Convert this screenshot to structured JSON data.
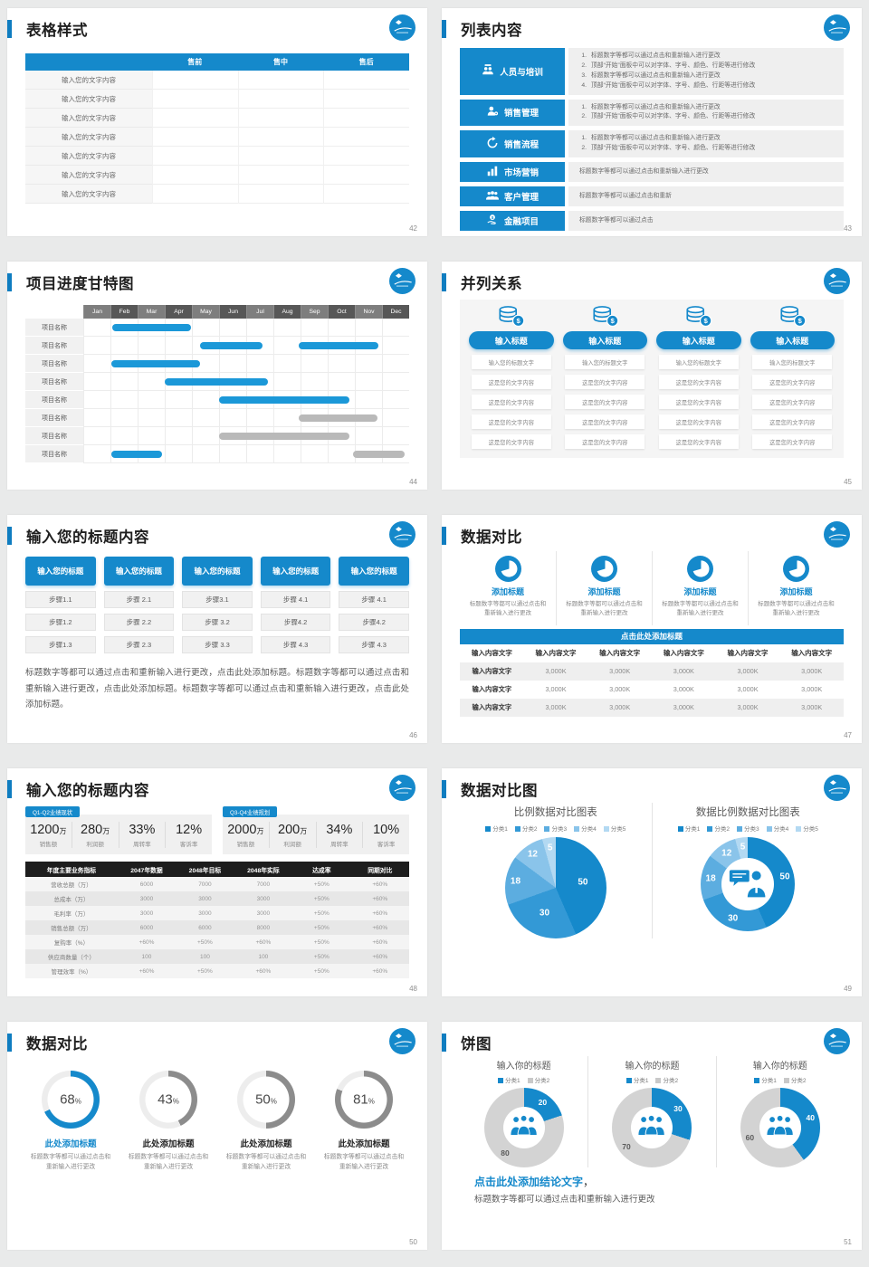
{
  "theme": {
    "primary": "#1589cb",
    "primary_dark": "#0f7dc0",
    "gantt_blue": "#1b98d8",
    "gantt_gray": "#b9b9b9",
    "pie_shades": [
      "#1589cb",
      "#3399d6",
      "#5cade0",
      "#8ac4ea",
      "#b3d9f2"
    ],
    "donut_gray": "#d3d3d3",
    "ring_gray": "#8c8c8c",
    "ring_track": "#ededed"
  },
  "slides": {
    "s42": {
      "title": "表格样式",
      "page": "42",
      "table": {
        "corner": "",
        "headers": [
          "售前",
          "售中",
          "售后"
        ],
        "row_label": "输入您的文字内容",
        "row_count": 7
      }
    },
    "s43": {
      "title": "列表内容",
      "page": "43",
      "items": [
        {
          "label": "人员与培训",
          "icon": "team-training-icon",
          "numbered": true,
          "lines": [
            "标题数字等都可以通过点击和重新输入进行更改",
            "顶部“开始”面板中可以对字体、字号、颜色、行距等进行修改",
            "标题数字等都可以通过点击和重新输入进行更改",
            "顶部“开始”面板中可以对字体、字号、颜色、行距等进行修改"
          ]
        },
        {
          "label": "销售管理",
          "icon": "sales-manager-icon",
          "numbered": true,
          "lines": [
            "标题数字等都可以通过点击和重新输入进行更改",
            "顶部“开始”面板中可以对字体、字号、颜色、行距等进行修改"
          ]
        },
        {
          "label": "销售流程",
          "icon": "process-icon",
          "numbered": true,
          "lines": [
            "标题数字等都可以通过点击和重新输入进行更改",
            "顶部“开始”面板中可以对字体、字号、颜色、行距等进行修改"
          ]
        },
        {
          "label": "市场营销",
          "icon": "bar-chart-icon",
          "numbered": false,
          "lines": [
            "标题数字等都可以通过点击和重新输入进行更改"
          ]
        },
        {
          "label": "客户管理",
          "icon": "customers-icon",
          "numbered": false,
          "lines": [
            "标题数字等都可以通过点击和重新"
          ]
        },
        {
          "label": "金融项目",
          "icon": "finance-icon",
          "numbered": false,
          "lines": [
            "标题数字等都可以通过点击"
          ]
        }
      ]
    },
    "s44": {
      "title": "项目进度甘特图",
      "page": "44",
      "months": [
        "Jan",
        "Feb",
        "Mar",
        "Apr",
        "May",
        "Jun",
        "Jul",
        "Aug",
        "Sep",
        "Oct",
        "Nov",
        "Dec"
      ],
      "row_label": "项目名称",
      "rows": [
        [
          {
            "s": 1.05,
            "e": 3.95,
            "c": "blue"
          }
        ],
        [
          {
            "s": 4.3,
            "e": 6.6,
            "c": "blue"
          },
          {
            "s": 7.93,
            "e": 10.86,
            "c": "blue"
          }
        ],
        [
          {
            "s": 1.03,
            "e": 4.3,
            "c": "blue"
          }
        ],
        [
          {
            "s": 3.0,
            "e": 6.8,
            "c": "blue"
          }
        ],
        [
          {
            "s": 5.0,
            "e": 9.8,
            "c": "blue"
          }
        ],
        [
          {
            "s": 7.93,
            "e": 10.83,
            "c": "gray"
          }
        ],
        [
          {
            "s": 5.0,
            "e": 9.8,
            "c": "gray"
          }
        ],
        [
          {
            "s": 1.03,
            "e": 2.9,
            "c": "blue"
          },
          {
            "s": 9.93,
            "e": 11.83,
            "c": "gray"
          }
        ]
      ]
    },
    "s45": {
      "title": "并列关系",
      "page": "45",
      "columns": [
        {
          "header": "输入标题",
          "rows": [
            "输入您的标题文字",
            "这是您的文字内容",
            "这是您的文字内容",
            "这是您的文字内容",
            "这是您的文字内容"
          ]
        },
        {
          "header": "输入标题",
          "rows": [
            "输入您的标题文字",
            "这是您的文字内容",
            "这是您的文字内容",
            "这是您的文字内容",
            "这是您的文字内容"
          ]
        },
        {
          "header": "输入标题",
          "rows": [
            "输入您的标题文字",
            "这是您的文字内容",
            "这是您的文字内容",
            "这是您的文字内容",
            "这是您的文字内容"
          ]
        },
        {
          "header": "输入标题",
          "rows": [
            "输入您的标题文字",
            "这是您的文字内容",
            "这是您的文字内容",
            "这是您的文字内容",
            "这是您的文字内容"
          ]
        }
      ]
    },
    "s46": {
      "title": "输入您的标题内容",
      "page": "46",
      "columns": [
        {
          "header": "输入您的标题",
          "steps": [
            "步骤1.1",
            "步骤1.2",
            "步骤1.3"
          ]
        },
        {
          "header": "输入您的标题",
          "steps": [
            "步骤 2.1",
            "步骤 2.2",
            "步骤 2.3"
          ]
        },
        {
          "header": "输入您的标题",
          "steps": [
            "步骤3.1",
            "步骤 3.2",
            "步骤 3.3"
          ]
        },
        {
          "header": "输入您的标题",
          "steps": [
            "步骤 4.1",
            "步骤4.2",
            "步骤 4.3"
          ]
        },
        {
          "header": "输入您的标题",
          "steps": [
            "步骤 4.1",
            "步骤4.2",
            "步骤 4.3"
          ]
        }
      ],
      "paragraph": "标题数字等都可以通过点击和重新输入进行更改，点击此处添加标题。标题数字等都可以通过点击和重新输入进行更改，点击此处添加标题。标题数字等都可以通过点击和重新输入进行更改，点击此处添加标题。"
    },
    "s47": {
      "title": "数据对比",
      "page": "47",
      "features": [
        {
          "title": "添加标题",
          "desc": "标题数字等都可以通过点击和重新输入进行更改"
        },
        {
          "title": "添加标题",
          "desc": "标题数字等都可以通过点击和重新输入进行更改"
        },
        {
          "title": "添加标题",
          "desc": "标题数字等都可以通过点击和重新输入进行更改"
        },
        {
          "title": "添加标题",
          "desc": "标题数字等都可以通过点击和重新输入进行更改"
        }
      ],
      "banner": "点击此处添加标题",
      "table": {
        "headers": [
          "输入内容文字",
          "输入内容文字",
          "输入内容文字",
          "输入内容文字",
          "输入内容文字",
          "输入内容文字"
        ],
        "rows": [
          [
            "输入内容文字",
            "3,000K",
            "3,000K",
            "3,000K",
            "3,000K",
            "3,000K"
          ],
          [
            "输入内容文字",
            "3,000K",
            "3,000K",
            "3,000K",
            "3,000K",
            "3,000K"
          ],
          [
            "输入内容文字",
            "3,000K",
            "3,000K",
            "3,000K",
            "3,000K",
            "3,000K"
          ]
        ]
      }
    },
    "s48": {
      "title": "输入您的标题内容",
      "page": "48",
      "groups": [
        {
          "tag": "Q1-Q2业绩现状",
          "stats": [
            {
              "value": "1200",
              "unit": "万",
              "label": "销售额"
            },
            {
              "value": "280",
              "unit": "万",
              "label": "利润额"
            },
            {
              "value": "33%",
              "unit": "",
              "label": "周转率"
            },
            {
              "value": "12%",
              "unit": "",
              "label": "客诉率"
            }
          ]
        },
        {
          "tag": "Q3-Q4业绩规划",
          "stats": [
            {
              "value": "2000",
              "unit": "万",
              "label": "销售额"
            },
            {
              "value": "200",
              "unit": "万",
              "label": "利润额"
            },
            {
              "value": "34%",
              "unit": "",
              "label": "周转率"
            },
            {
              "value": "10%",
              "unit": "",
              "label": "客诉率"
            }
          ]
        }
      ],
      "table": {
        "headers": [
          "年度主要业务指标",
          "2047年数据",
          "2048年目标",
          "2048年实际",
          "达成率",
          "同期对比"
        ],
        "rows": [
          [
            "营收总额（万）",
            "6000",
            "7000",
            "7000",
            "+50%",
            "+60%"
          ],
          [
            "总成本（万）",
            "3000",
            "3000",
            "3000",
            "+50%",
            "+60%"
          ],
          [
            "毛利率（万）",
            "3000",
            "3000",
            "3000",
            "+50%",
            "+60%"
          ],
          [
            "销售总额（万）",
            "6000",
            "6000",
            "8000",
            "+50%",
            "+60%"
          ],
          [
            "复购率（%）",
            "+60%",
            "+50%",
            "+60%",
            "+50%",
            "+60%"
          ],
          [
            "供应商数量（个）",
            "100",
            "100",
            "100",
            "+50%",
            "+60%"
          ],
          [
            "管理效率（%）",
            "+60%",
            "+50%",
            "+60%",
            "+50%",
            "+60%"
          ]
        ]
      }
    },
    "s49": {
      "title": "数据对比图",
      "page": "49",
      "legend": [
        "分类1",
        "分类2",
        "分类3",
        "分类4",
        "分类5"
      ],
      "charts": [
        {
          "title": "比例数据对比图表",
          "type": "pie",
          "values": [
            50,
            30,
            18,
            12,
            5
          ]
        },
        {
          "title": "数据比例数据对比图表",
          "type": "donut",
          "values": [
            50,
            30,
            18,
            12,
            5
          ]
        }
      ]
    },
    "s50": {
      "title": "数据对比",
      "page": "50",
      "items": [
        {
          "percent": 68,
          "accent": true,
          "title": "此处添加标题",
          "desc": "标题数字等都可以通过点击和重新输入进行更改"
        },
        {
          "percent": 43,
          "accent": false,
          "title": "此处添加标题",
          "desc": "标题数字等都可以通过点击和重新输入进行更改"
        },
        {
          "percent": 50,
          "accent": false,
          "title": "此处添加标题",
          "desc": "标题数字等都可以通过点击和重新输入进行更改"
        },
        {
          "percent": 81,
          "accent": false,
          "title": "此处添加标题",
          "desc": "标题数字等都可以通过点击和重新输入进行更改"
        }
      ]
    },
    "s51": {
      "title": "饼图",
      "page": "51",
      "charts": [
        {
          "title": "输入你的标题",
          "legend": [
            "分类1",
            "分类2"
          ],
          "values": [
            20,
            80
          ]
        },
        {
          "title": "输入你的标题",
          "legend": [
            "分类1",
            "分类2"
          ],
          "values": [
            30,
            70
          ]
        },
        {
          "title": "输入你的标题",
          "legend": [
            "分类1",
            "分类2"
          ],
          "values": [
            40,
            60
          ]
        }
      ],
      "conclusion_title": "点击此处添加结论文字",
      "conclusion_comma": "，",
      "conclusion_text": "标题数字等都可以通过点击和重新输入进行更改"
    }
  }
}
